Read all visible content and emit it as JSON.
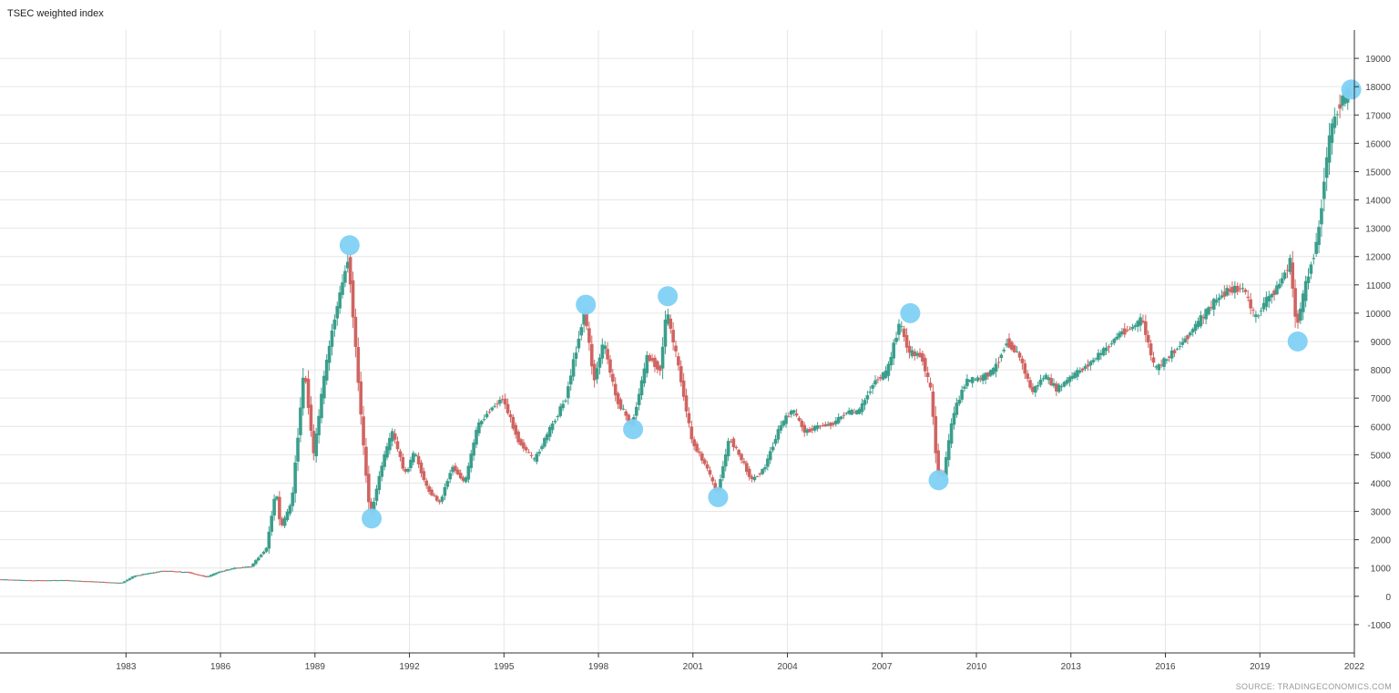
{
  "chart_data": {
    "type": "candlestick",
    "title": "TSEC weighted index",
    "source": "SOURCE: TRADINGECONOMICS.COM",
    "x_ticks": [
      "1983",
      "1986",
      "1989",
      "1992",
      "1995",
      "1998",
      "2001",
      "2004",
      "2007",
      "2010",
      "2013",
      "2016",
      "2019",
      "2022"
    ],
    "y_ticks": [
      "-1000",
      "0",
      "1000",
      "2000",
      "3000",
      "4000",
      "5000",
      "6000",
      "7000",
      "8000",
      "9000",
      "10000",
      "11000",
      "12000",
      "13000",
      "14000",
      "15000",
      "16000",
      "17000",
      "18000",
      "19000"
    ],
    "xlim": [
      1979.0,
      2022.0
    ],
    "ylim": [
      -2000,
      20000
    ],
    "y_axis_side": "right",
    "grid": true,
    "colors": {
      "up": "#3b9e8c",
      "down": "#d06461",
      "marker": "#7fd1f5",
      "grid": "#e6e6e6",
      "axis": "#333333"
    },
    "price_path": [
      [
        1979.0,
        600
      ],
      [
        1980.0,
        560
      ],
      [
        1981.0,
        570
      ],
      [
        1982.0,
        520
      ],
      [
        1982.9,
        470
      ],
      [
        1983.3,
        720
      ],
      [
        1984.2,
        900
      ],
      [
        1985.0,
        850
      ],
      [
        1985.6,
        680
      ],
      [
        1986.0,
        870
      ],
      [
        1986.5,
        1000
      ],
      [
        1987.0,
        1050
      ],
      [
        1987.5,
        1700
      ],
      [
        1987.8,
        3800
      ],
      [
        1987.95,
        2400
      ],
      [
        1988.3,
        3300
      ],
      [
        1988.7,
        8100
      ],
      [
        1989.0,
        5000
      ],
      [
        1989.3,
        7500
      ],
      [
        1989.6,
        9500
      ],
      [
        1990.1,
        12000
      ],
      [
        1990.6,
        5000
      ],
      [
        1990.8,
        2800
      ],
      [
        1991.2,
        4800
      ],
      [
        1991.5,
        5800
      ],
      [
        1991.9,
        4300
      ],
      [
        1992.2,
        5100
      ],
      [
        1992.6,
        3800
      ],
      [
        1993.0,
        3300
      ],
      [
        1993.4,
        4600
      ],
      [
        1993.8,
        4000
      ],
      [
        1994.2,
        6000
      ],
      [
        1994.6,
        6600
      ],
      [
        1995.0,
        7000
      ],
      [
        1995.5,
        5500
      ],
      [
        1996.0,
        4800
      ],
      [
        1996.5,
        5900
      ],
      [
        1997.0,
        7000
      ],
      [
        1997.6,
        10100
      ],
      [
        1997.9,
        7600
      ],
      [
        1998.2,
        9000
      ],
      [
        1998.6,
        7000
      ],
      [
        1999.1,
        6000
      ],
      [
        1999.6,
        8500
      ],
      [
        2000.0,
        8000
      ],
      [
        2000.2,
        10100
      ],
      [
        2000.6,
        8000
      ],
      [
        2001.0,
        5500
      ],
      [
        2001.5,
        4500
      ],
      [
        2001.8,
        3600
      ],
      [
        2002.2,
        5600
      ],
      [
        2002.6,
        4800
      ],
      [
        2002.9,
        4100
      ],
      [
        2003.3,
        4500
      ],
      [
        2003.8,
        6000
      ],
      [
        2004.2,
        6600
      ],
      [
        2004.6,
        5800
      ],
      [
        2005.0,
        6000
      ],
      [
        2005.5,
        6100
      ],
      [
        2005.9,
        6500
      ],
      [
        2006.3,
        6500
      ],
      [
        2006.8,
        7600
      ],
      [
        2007.2,
        7900
      ],
      [
        2007.6,
        9700
      ],
      [
        2007.9,
        8600
      ],
      [
        2008.3,
        8500
      ],
      [
        2008.6,
        7200
      ],
      [
        2008.8,
        4400
      ],
      [
        2009.0,
        4300
      ],
      [
        2009.3,
        6400
      ],
      [
        2009.7,
        7600
      ],
      [
        2010.2,
        7700
      ],
      [
        2010.6,
        8000
      ],
      [
        2011.0,
        9000
      ],
      [
        2011.4,
        8500
      ],
      [
        2011.8,
        7200
      ],
      [
        2012.2,
        7800
      ],
      [
        2012.6,
        7300
      ],
      [
        2013.0,
        7700
      ],
      [
        2013.6,
        8200
      ],
      [
        2014.2,
        8800
      ],
      [
        2014.6,
        9300
      ],
      [
        2015.0,
        9500
      ],
      [
        2015.3,
        9800
      ],
      [
        2015.7,
        8000
      ],
      [
        2016.0,
        8300
      ],
      [
        2016.6,
        9000
      ],
      [
        2017.1,
        9700
      ],
      [
        2017.6,
        10400
      ],
      [
        2018.0,
        10800
      ],
      [
        2018.5,
        10900
      ],
      [
        2018.9,
        9800
      ],
      [
        2019.2,
        10400
      ],
      [
        2019.6,
        10900
      ],
      [
        2020.0,
        11800
      ],
      [
        2020.2,
        9500
      ],
      [
        2020.5,
        11000
      ],
      [
        2020.9,
        12800
      ],
      [
        2021.1,
        15000
      ],
      [
        2021.3,
        16500
      ],
      [
        2021.6,
        17500
      ],
      [
        2021.9,
        17800
      ]
    ],
    "highlighted_points": [
      {
        "x": 1990.1,
        "y": 12400
      },
      {
        "x": 1990.8,
        "y": 2750
      },
      {
        "x": 1997.6,
        "y": 10300
      },
      {
        "x": 1999.1,
        "y": 5900
      },
      {
        "x": 2000.2,
        "y": 10600
      },
      {
        "x": 2001.8,
        "y": 3500
      },
      {
        "x": 2007.9,
        "y": 10000
      },
      {
        "x": 2008.8,
        "y": 4100
      },
      {
        "x": 2020.2,
        "y": 9000
      },
      {
        "x": 2021.9,
        "y": 17900
      }
    ]
  }
}
